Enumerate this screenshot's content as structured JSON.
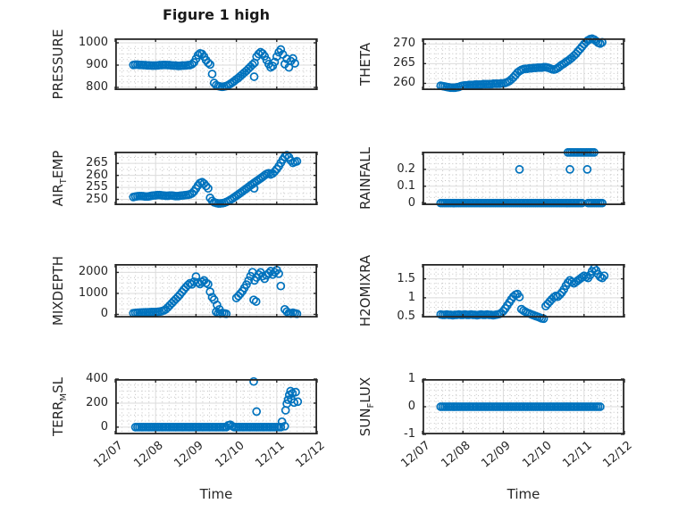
{
  "figure": {
    "title": "Figure 1 high",
    "xlabel": "Time",
    "background": "#ffffff",
    "accent_color": "#0072BD",
    "axis_color": "#262626",
    "major_grid_color": "#dbdbdb",
    "minor_grid_color": "#c3c3c3"
  },
  "x_axis": {
    "lim_days": [
      0,
      5
    ],
    "tick_labels": [
      "12/07",
      "12/08",
      "12/09",
      "12/10",
      "12/11",
      "12/12"
    ],
    "minor_divisions": 6
  },
  "chart_data": [
    {
      "id": "pressure",
      "type": "scatter",
      "marker": "open-circle",
      "ylabel": "PRESSURE",
      "ylabel_parts": [
        [
          "PRESSURE",
          false
        ]
      ],
      "ylim": [
        788,
        1020
      ],
      "yticks": [
        800,
        900,
        1000
      ],
      "ytick_labels": [
        "800",
        "900",
        "1000"
      ],
      "y_minor_divisions": 4,
      "series": {
        "runs": [
          {
            "x0": 0.45,
            "dx": 0.05,
            "y": [
              901,
              902,
              902,
              901,
              901,
              900,
              900,
              899,
              899,
              898,
              898,
              898,
              899,
              900,
              900,
              901,
              901,
              900,
              900,
              899,
              898,
              898,
              897,
              897,
              898,
              898,
              899,
              900,
              900,
              904,
              912,
              928,
              945,
              953,
              950,
              938,
              922,
              910,
              903,
              860,
              820,
              810,
              806,
              804,
              803,
              804,
              806,
              810,
              816,
              822,
              829,
              836,
              843,
              851,
              859,
              867,
              875,
              884,
              893,
              902,
              910,
              938,
              950,
              958,
              952,
              940,
              922,
              905,
              890,
              896,
              914,
              938,
              958,
              970,
              948,
              905,
              928,
              890,
              918,
              930,
              908
            ]
          }
        ],
        "points": [
          [
            3.44,
            848
          ]
        ]
      }
    },
    {
      "id": "theta",
      "type": "scatter",
      "marker": "open-circle",
      "ylabel": "THETA",
      "ylabel_parts": [
        [
          "THETA",
          false
        ]
      ],
      "ylim": [
        258.3,
        271.4
      ],
      "yticks": [
        260,
        265,
        270
      ],
      "ytick_labels": [
        "260",
        "265",
        "270"
      ],
      "y_minor_divisions": 4,
      "series": {
        "runs": [
          {
            "x0": 0.45,
            "dx": 0.05,
            "y": [
              259.4,
              259.3,
              259.2,
              259.1,
              259.0,
              258.9,
              258.9,
              258.9,
              259.0,
              259.1,
              259.3,
              259.4,
              259.5,
              259.5,
              259.6,
              259.6,
              259.6,
              259.7,
              259.7,
              259.7,
              259.7,
              259.8,
              259.8,
              259.8,
              259.8,
              259.8,
              259.9,
              259.9,
              259.9,
              259.9,
              260.0,
              260.0,
              260.1,
              260.3,
              260.6,
              261.0,
              261.5,
              262.1,
              262.7,
              263.1,
              263.4,
              263.6,
              263.7,
              263.7,
              263.8,
              263.8,
              263.9,
              263.9,
              264.0,
              264.0,
              264.0,
              264.1,
              264.1,
              264.0,
              263.8,
              263.6,
              263.5,
              263.6,
              263.9,
              264.3,
              264.7,
              265.0,
              265.4,
              265.7,
              266.1,
              266.5,
              267.0,
              267.5,
              268.1,
              268.7,
              269.3,
              269.9,
              270.5,
              270.9,
              271.2,
              271.3,
              271.1,
              270.7,
              270.3,
              270.1,
              270.4
            ]
          }
        ],
        "points": []
      }
    },
    {
      "id": "air_temp",
      "type": "scatter",
      "marker": "open-circle",
      "ylabel": "AIR_TEMP",
      "ylabel_parts": [
        [
          "AIR",
          false
        ],
        [
          "T",
          true
        ],
        [
          "EMP",
          false
        ]
      ],
      "ylim": [
        247.6,
        269.9
      ],
      "yticks": [
        250,
        255,
        260,
        265
      ],
      "ytick_labels": [
        "250",
        "255",
        "260",
        "265"
      ],
      "y_minor_divisions": 2,
      "series": {
        "runs": [
          {
            "x0": 0.45,
            "dx": 0.05,
            "y": [
              251.0,
              251.2,
              251.3,
              251.4,
              251.4,
              251.3,
              251.2,
              251.2,
              251.3,
              251.5,
              251.6,
              251.7,
              251.8,
              251.8,
              251.7,
              251.6,
              251.5,
              251.5,
              251.6,
              251.6,
              251.5,
              251.4,
              251.4,
              251.5,
              251.6,
              251.7,
              251.8,
              251.9,
              252.1,
              252.5,
              253.3,
              254.5,
              255.8,
              256.8,
              257.2,
              256.6,
              255.6,
              254.6,
              250.6,
              249.4,
              248.8,
              248.5,
              248.3,
              248.3,
              248.4,
              248.6,
              248.9,
              249.3,
              249.8,
              250.3,
              250.9,
              251.5,
              252.1,
              252.7,
              253.3,
              253.9,
              254.5,
              255.2,
              255.8,
              256.4,
              257.0,
              257.6,
              258.2,
              258.8,
              259.4,
              260.0,
              260.6,
              260.9,
              260.4,
              260.8,
              261.6,
              262.6,
              263.8,
              265.2,
              266.6,
              267.8,
              268.4,
              267.6,
              266.2,
              265.2,
              265.6,
              265.9
            ]
          }
        ],
        "points": [
          [
            3.44,
            254.6
          ]
        ]
      }
    },
    {
      "id": "rainfall",
      "type": "scatter",
      "marker": "open-circle",
      "ylabel": "RAINFALL",
      "ylabel_parts": [
        [
          "RAINFALL",
          false
        ]
      ],
      "ylim": [
        -0.012,
        0.305
      ],
      "yticks": [
        0,
        0.1,
        0.2
      ],
      "ytick_labels": [
        "0",
        "0.1",
        "0.2"
      ],
      "y_minor_divisions": 3,
      "series": {
        "runs": [
          {
            "x0": 0.45,
            "dx": 0.05,
            "y": [
              0,
              0,
              0,
              0,
              0,
              0,
              0,
              0,
              0,
              0,
              0,
              0,
              0,
              0,
              0,
              0,
              0,
              0,
              0,
              0,
              0,
              0,
              0,
              0,
              0,
              0,
              0,
              0,
              0,
              0,
              0,
              0,
              0,
              0,
              0,
              0,
              0,
              0,
              0,
              0,
              0,
              0,
              0,
              0,
              0,
              0,
              0,
              0,
              0,
              0,
              0,
              0,
              0,
              0,
              0,
              0,
              0,
              0,
              0,
              0,
              0,
              0,
              0,
              0,
              0,
              0,
              0,
              0,
              0,
              0
            ]
          },
          {
            "x0": 4.1,
            "dx": 0.05,
            "y": [
              0,
              0,
              0,
              0,
              0,
              0,
              0,
              0
            ]
          },
          {
            "x0": 3.6,
            "dx": 0.05,
            "y": [
              0.3,
              0.3,
              0.3,
              0.3,
              0.3,
              0.3,
              0.3,
              0.3,
              0.3,
              0.3,
              0.3,
              0.3,
              0.3,
              0.3
            ]
          }
        ],
        "points": [
          [
            3.95,
            0
          ],
          [
            2.4,
            0.2
          ],
          [
            3.65,
            0.2
          ],
          [
            4.08,
            0.2
          ]
        ]
      }
    },
    {
      "id": "mixdepth",
      "type": "scatter",
      "marker": "open-circle",
      "ylabel": "MIXDEPTH",
      "ylabel_parts": [
        [
          "MIXDEPTH",
          false
        ]
      ],
      "ylim": [
        -150,
        2400
      ],
      "yticks": [
        0,
        1000,
        2000
      ],
      "ytick_labels": [
        "0",
        "1000",
        "2000"
      ],
      "y_minor_divisions": 4,
      "series": {
        "runs": [
          {
            "x0": 0.45,
            "dx": 0.05,
            "y": [
              60,
              70,
              80,
              85,
              90,
              95,
              100,
              100,
              105,
              110,
              110,
              115,
              120,
              130,
              150,
              180,
              240,
              330,
              430,
              530,
              630,
              730,
              830,
              940,
              1060,
              1180,
              1300,
              1400,
              1480,
              1430,
              1560,
              1800,
              1520,
              1450,
              1540,
              1620,
              1500,
              1440,
              1080,
              820,
              700,
              120,
              60,
              35,
              70,
              45,
              30
            ]
          },
          {
            "x0": 3.0,
            "dx": 0.05,
            "y": [
              780,
              880,
              990,
              1110,
              1260,
              1420,
              1610,
              1820,
              2010,
              1620,
              1760,
              1900,
              2000,
              1820,
              1700,
              1860,
              1960,
              2060,
              1900,
              2010,
              2110,
              1940,
              1350
            ]
          },
          {
            "x0": 4.2,
            "dx": 0.05,
            "y": [
              240,
              130,
              60,
              35,
              80,
              50,
              30
            ]
          }
        ],
        "points": [
          [
            2.52,
            450
          ],
          [
            2.58,
            240
          ],
          [
            3.43,
            690
          ],
          [
            3.49,
            610
          ]
        ]
      }
    },
    {
      "id": "h2omixra",
      "type": "scatter",
      "marker": "open-circle",
      "ylabel": "H2OMIXRA",
      "ylabel_parts": [
        [
          "H2OMIXRA",
          false
        ]
      ],
      "ylim": [
        0.48,
        1.89
      ],
      "yticks": [
        0.5,
        1,
        1.5
      ],
      "ytick_labels": [
        "0.5",
        "1",
        "1.5"
      ],
      "y_minor_divisions": 4,
      "series": {
        "runs": [
          {
            "x0": 0.45,
            "dx": 0.05,
            "y": [
              0.56,
              0.55,
              0.55,
              0.56,
              0.55,
              0.55,
              0.54,
              0.55,
              0.55,
              0.56,
              0.55,
              0.55,
              0.56,
              0.55,
              0.55,
              0.56,
              0.55,
              0.55,
              0.54,
              0.55,
              0.56,
              0.55,
              0.55,
              0.56,
              0.55,
              0.55,
              0.54,
              0.55,
              0.56,
              0.57,
              0.6,
              0.65,
              0.72,
              0.8,
              0.88,
              0.96,
              1.03,
              1.08,
              1.1,
              1.02,
              0.7,
              0.66,
              0.63,
              0.6,
              0.58,
              0.56,
              0.54,
              0.52,
              0.5,
              0.48,
              0.46,
              0.45,
              0.78,
              0.84,
              0.9,
              0.96,
              1.01,
              1.05,
              1.03,
              1.08,
              1.14,
              1.22,
              1.32,
              1.4,
              1.46,
              1.42,
              1.38,
              1.42,
              1.46,
              1.5,
              1.54,
              1.58,
              1.55,
              1.52,
              1.6,
              1.7,
              1.78,
              1.72,
              1.62,
              1.55,
              1.52,
              1.58
            ]
          }
        ],
        "points": []
      }
    },
    {
      "id": "terr_msl",
      "type": "scatter",
      "marker": "open-circle",
      "ylabel": "TERR_MSL",
      "ylabel_parts": [
        [
          "TERR",
          false
        ],
        [
          "M",
          true
        ],
        [
          "SL",
          false
        ]
      ],
      "ylim": [
        -60,
        400
      ],
      "yticks": [
        0,
        200,
        400
      ],
      "ytick_labels": [
        "0",
        "200",
        "400"
      ],
      "y_minor_divisions": 4,
      "series": {
        "runs": [
          {
            "x0": 0.5,
            "dx": 0.05,
            "y": [
              0,
              0,
              0,
              0,
              0,
              0,
              0,
              0,
              0,
              0,
              0,
              0,
              0,
              0,
              0,
              0,
              0,
              0,
              0,
              0,
              0,
              0,
              0,
              0,
              0,
              0,
              0,
              0,
              0,
              0,
              0,
              0,
              0,
              0,
              0,
              0,
              0,
              0,
              0,
              0,
              0,
              0,
              0,
              0,
              0,
              0,
              16,
              20,
              8,
              0,
              0,
              0,
              0,
              0,
              0,
              0,
              0,
              0,
              0,
              0,
              0,
              0,
              0,
              0,
              0,
              0,
              0,
              0,
              0,
              0,
              0,
              0,
              0
            ]
          }
        ],
        "points": [
          [
            3.43,
            380
          ],
          [
            3.5,
            130
          ],
          [
            4.13,
            45
          ],
          [
            4.2,
            8
          ],
          [
            4.22,
            140
          ],
          [
            4.25,
            195
          ],
          [
            4.28,
            228
          ],
          [
            4.31,
            268
          ],
          [
            4.34,
            300
          ],
          [
            4.36,
            232
          ],
          [
            4.39,
            282
          ],
          [
            4.43,
            205
          ],
          [
            4.47,
            292
          ],
          [
            4.52,
            212
          ]
        ]
      }
    },
    {
      "id": "sun_flux",
      "type": "scatter",
      "marker": "open-circle",
      "ylabel": "SUN_FLUX",
      "ylabel_parts": [
        [
          "SUN",
          false
        ],
        [
          "F",
          true
        ],
        [
          "LUX",
          false
        ]
      ],
      "ylim": [
        -1,
        1
      ],
      "yticks": [
        -1,
        0,
        1
      ],
      "ytick_labels": [
        "-1",
        "0",
        "1"
      ],
      "y_minor_divisions": 5,
      "series": {
        "runs": [
          {
            "x0": 0.45,
            "dx": 0.05,
            "y": [
              0,
              0,
              0,
              0,
              0,
              0,
              0,
              0,
              0,
              0,
              0,
              0,
              0,
              0,
              0,
              0,
              0,
              0,
              0,
              0,
              0,
              0,
              0,
              0,
              0,
              0,
              0,
              0,
              0,
              0,
              0,
              0,
              0,
              0,
              0,
              0,
              0,
              0,
              0,
              0,
              0,
              0,
              0,
              0,
              0,
              0,
              0,
              0,
              0,
              0,
              0,
              0,
              0,
              0,
              0,
              0,
              0,
              0,
              0,
              0,
              0,
              0,
              0,
              0,
              0,
              0,
              0,
              0,
              0,
              0,
              0,
              0,
              0,
              0,
              0,
              0,
              0,
              0,
              0,
              0
            ]
          }
        ],
        "points": []
      }
    }
  ]
}
